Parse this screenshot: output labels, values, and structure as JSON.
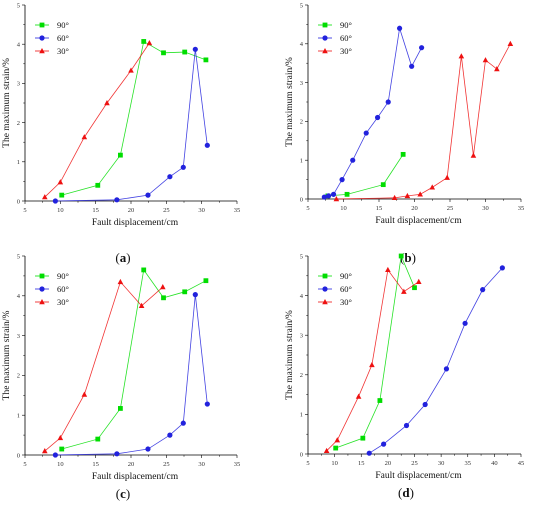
{
  "chart_data": [
    {
      "type": "line",
      "panel": "a",
      "caption_left": "(",
      "caption_letter": "a",
      "caption_right": ")",
      "xlabel": "Fault displacement/cm",
      "ylabel": "The maximum strain/%",
      "xlim": [
        5,
        35
      ],
      "ylim": [
        0,
        5
      ],
      "xticks": [
        5,
        10,
        15,
        20,
        25,
        30,
        35
      ],
      "yticks": [
        0,
        1,
        2,
        3,
        4,
        5
      ],
      "legend_position": "top-left",
      "series": [
        {
          "name": "90°",
          "color": "#00dd00",
          "marker": "square",
          "x": [
            10.2,
            15.3,
            18.5,
            21.8,
            24.6,
            27.6,
            30.6
          ],
          "y": [
            0.15,
            0.4,
            1.17,
            4.07,
            3.78,
            3.8,
            3.6
          ]
        },
        {
          "name": "60°",
          "color": "#2222dd",
          "marker": "circle",
          "x": [
            9.3,
            18.0,
            22.4,
            25.5,
            27.4,
            29.1,
            30.8
          ],
          "y": [
            0.0,
            0.03,
            0.15,
            0.62,
            0.86,
            3.87,
            1.42
          ]
        },
        {
          "name": "30°",
          "color": "#ee1111",
          "marker": "triangle",
          "x": [
            7.8,
            10.0,
            13.4,
            16.6,
            20.0,
            22.6
          ],
          "y": [
            0.1,
            0.48,
            1.63,
            2.5,
            3.33,
            4.03
          ]
        }
      ]
    },
    {
      "type": "line",
      "panel": "b",
      "caption_left": "(",
      "caption_letter": "b",
      "caption_right": ")",
      "xlabel": "Fault displacement/cm",
      "ylabel": "The maximum strain/%",
      "xlim": [
        5,
        35
      ],
      "ylim": [
        0,
        5
      ],
      "xticks": [
        5,
        10,
        15,
        20,
        25,
        30,
        35
      ],
      "yticks": [
        0,
        1,
        2,
        3,
        4,
        5
      ],
      "legend_position": "top-left",
      "series": [
        {
          "name": "90°",
          "color": "#00dd00",
          "marker": "square",
          "x": [
            7.8,
            10.5,
            15.6,
            18.4
          ],
          "y": [
            0.08,
            0.12,
            0.37,
            1.15
          ]
        },
        {
          "name": "60°",
          "color": "#2222dd",
          "marker": "circle",
          "x": [
            7.3,
            7.9,
            8.6,
            9.8,
            11.3,
            13.2,
            14.8,
            16.3,
            17.9,
            19.6,
            21.0
          ],
          "y": [
            0.05,
            0.08,
            0.12,
            0.5,
            1.0,
            1.7,
            2.1,
            2.5,
            4.4,
            3.42,
            3.9
          ]
        },
        {
          "name": "30°",
          "color": "#ee1111",
          "marker": "triangle",
          "x": [
            9.0,
            17.2,
            19.0,
            20.8,
            22.5,
            24.6,
            26.6,
            28.3,
            30.0,
            31.6,
            33.5
          ],
          "y": [
            0.0,
            0.03,
            0.08,
            0.12,
            0.3,
            0.55,
            3.68,
            1.12,
            3.58,
            3.35,
            4.0
          ]
        }
      ]
    },
    {
      "type": "line",
      "panel": "c",
      "caption_left": "(",
      "caption_letter": "c",
      "caption_right": ")",
      "xlabel": "Fault displacement/cm",
      "ylabel": "The maximum strain/%",
      "xlim": [
        5,
        35
      ],
      "ylim": [
        0,
        5
      ],
      "xticks": [
        5,
        10,
        15,
        20,
        25,
        30,
        35
      ],
      "yticks": [
        0,
        1,
        2,
        3,
        4,
        5
      ],
      "legend_position": "top-left",
      "series": [
        {
          "name": "90°",
          "color": "#00dd00",
          "marker": "square",
          "x": [
            10.2,
            15.3,
            18.5,
            21.8,
            24.6,
            27.6,
            30.6
          ],
          "y": [
            0.15,
            0.4,
            1.17,
            4.65,
            3.95,
            4.1,
            4.38
          ]
        },
        {
          "name": "60°",
          "color": "#2222dd",
          "marker": "circle",
          "x": [
            9.3,
            18.0,
            22.4,
            25.5,
            27.4,
            29.1,
            30.8
          ],
          "y": [
            0.0,
            0.03,
            0.15,
            0.5,
            0.8,
            4.03,
            1.28
          ]
        },
        {
          "name": "30°",
          "color": "#ee1111",
          "marker": "triangle",
          "x": [
            7.8,
            10.0,
            13.4,
            18.5,
            21.5,
            24.5
          ],
          "y": [
            0.1,
            0.43,
            1.52,
            4.35,
            3.75,
            4.22
          ]
        }
      ]
    },
    {
      "type": "line",
      "panel": "d",
      "caption_left": "(",
      "caption_letter": "d",
      "caption_right": ")",
      "xlabel": "Fault displacement/cm",
      "ylabel": "The maximum strain/%",
      "xlim": [
        5,
        45
      ],
      "ylim": [
        0,
        5
      ],
      "xticks": [
        5,
        10,
        15,
        20,
        25,
        30,
        35,
        40,
        45
      ],
      "yticks": [
        0,
        1,
        2,
        3,
        4,
        5
      ],
      "legend_position": "top-left",
      "series": [
        {
          "name": "90°",
          "color": "#00dd00",
          "marker": "square",
          "x": [
            10.2,
            15.3,
            18.5,
            22.5,
            25.0
          ],
          "y": [
            0.15,
            0.4,
            1.35,
            5.0,
            4.2
          ]
        },
        {
          "name": "60°",
          "color": "#2222dd",
          "marker": "circle",
          "x": [
            16.5,
            19.2,
            23.5,
            27.0,
            31.0,
            34.5,
            37.8,
            41.5
          ],
          "y": [
            0.02,
            0.25,
            0.72,
            1.25,
            2.15,
            3.3,
            4.15,
            4.7
          ]
        },
        {
          "name": "30°",
          "color": "#ee1111",
          "marker": "triangle",
          "x": [
            8.5,
            10.5,
            14.5,
            17.0,
            20.0,
            23.0,
            25.8
          ],
          "y": [
            0.08,
            0.35,
            1.45,
            2.25,
            4.65,
            4.1,
            4.35
          ]
        }
      ]
    }
  ]
}
